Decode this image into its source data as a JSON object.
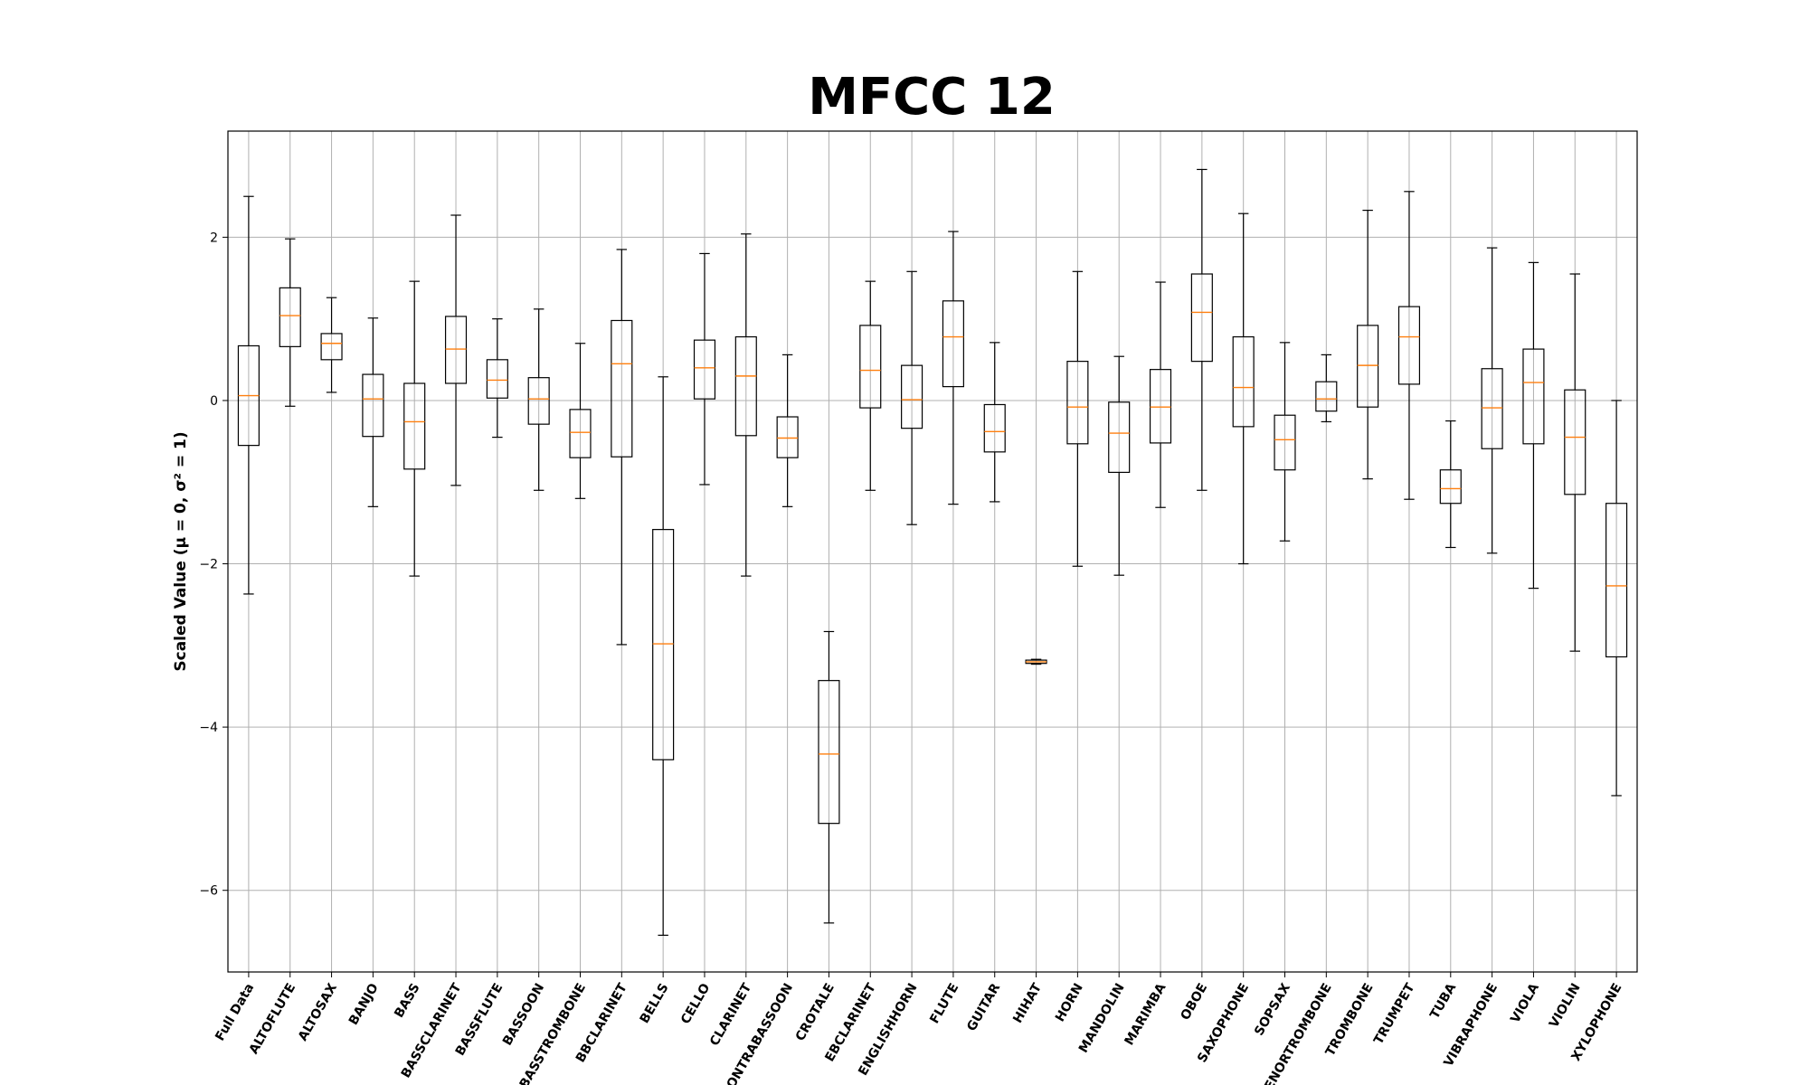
{
  "chart_data": {
    "type": "boxplot",
    "title": "MFCC 12",
    "ylabel": "Scaled Value (μ = 0, σ² = 1)",
    "xlabel": "",
    "ylim": [
      -7.0,
      3.3
    ],
    "yticks": [
      -6,
      -4,
      -2,
      0,
      2
    ],
    "grid": true,
    "colors": {
      "box": "#000000",
      "median": "#ff7f0e",
      "grid": "#b0b0b0"
    },
    "categories": [
      "Full Data",
      "ALTOFLUTE",
      "ALTOSAX",
      "BANJO",
      "BASS",
      "BASSCLARINET",
      "BASSFLUTE",
      "BASSOON",
      "BASSTROMBONE",
      "BBCLARINET",
      "BELLS",
      "CELLO",
      "CLARINET",
      "CONTRABASSOON",
      "CROTALE",
      "EBCLARINET",
      "ENGLISHHORN",
      "FLUTE",
      "GUITAR",
      "HIHAT",
      "HORN",
      "MANDOLIN",
      "MARIMBA",
      "OBOE",
      "SAXOPHONE",
      "SOPSAX",
      "TENORTROMBONE",
      "TROMBONE",
      "TRUMPET",
      "TUBA",
      "VIBRAPHONE",
      "VIOLA",
      "VIOLIN",
      "XYLOPHONE"
    ],
    "boxes": [
      {
        "whislo": -2.37,
        "q1": -0.55,
        "med": 0.06,
        "q3": 0.67,
        "whishi": 2.5
      },
      {
        "whislo": -0.07,
        "q1": 0.66,
        "med": 1.04,
        "q3": 1.38,
        "whishi": 1.98
      },
      {
        "whislo": 0.1,
        "q1": 0.5,
        "med": 0.7,
        "q3": 0.82,
        "whishi": 1.26
      },
      {
        "whislo": -1.3,
        "q1": -0.44,
        "med": 0.02,
        "q3": 0.32,
        "whishi": 1.01
      },
      {
        "whislo": -2.15,
        "q1": -0.84,
        "med": -0.26,
        "q3": 0.21,
        "whishi": 1.46
      },
      {
        "whislo": -1.04,
        "q1": 0.21,
        "med": 0.63,
        "q3": 1.03,
        "whishi": 2.27
      },
      {
        "whislo": -0.45,
        "q1": 0.03,
        "med": 0.25,
        "q3": 0.5,
        "whishi": 1.0
      },
      {
        "whislo": -1.1,
        "q1": -0.29,
        "med": 0.02,
        "q3": 0.28,
        "whishi": 1.12
      },
      {
        "whislo": -1.2,
        "q1": -0.7,
        "med": -0.39,
        "q3": -0.11,
        "whishi": 0.7
      },
      {
        "whislo": -2.99,
        "q1": -0.69,
        "med": 0.45,
        "q3": 0.98,
        "whishi": 1.85
      },
      {
        "whislo": -6.55,
        "q1": -4.4,
        "med": -2.98,
        "q3": -1.58,
        "whishi": 0.29
      },
      {
        "whislo": -1.03,
        "q1": 0.02,
        "med": 0.4,
        "q3": 0.74,
        "whishi": 1.8
      },
      {
        "whislo": -2.15,
        "q1": -0.43,
        "med": 0.3,
        "q3": 0.78,
        "whishi": 2.04
      },
      {
        "whislo": -1.3,
        "q1": -0.7,
        "med": -0.46,
        "q3": -0.2,
        "whishi": 0.56
      },
      {
        "whislo": -6.4,
        "q1": -5.18,
        "med": -4.33,
        "q3": -3.43,
        "whishi": -2.83
      },
      {
        "whislo": -1.1,
        "q1": -0.09,
        "med": 0.37,
        "q3": 0.92,
        "whishi": 1.46
      },
      {
        "whislo": -1.52,
        "q1": -0.34,
        "med": 0.01,
        "q3": 0.43,
        "whishi": 1.58
      },
      {
        "whislo": -1.27,
        "q1": 0.17,
        "med": 0.78,
        "q3": 1.22,
        "whishi": 2.07
      },
      {
        "whislo": -1.24,
        "q1": -0.63,
        "med": -0.38,
        "q3": -0.05,
        "whishi": 0.71
      },
      {
        "whislo": -3.23,
        "q1": -3.22,
        "med": -3.2,
        "q3": -3.18,
        "whishi": -3.17
      },
      {
        "whislo": -2.03,
        "q1": -0.53,
        "med": -0.08,
        "q3": 0.48,
        "whishi": 1.58
      },
      {
        "whislo": -2.14,
        "q1": -0.88,
        "med": -0.4,
        "q3": -0.02,
        "whishi": 0.54
      },
      {
        "whislo": -1.31,
        "q1": -0.52,
        "med": -0.08,
        "q3": 0.38,
        "whishi": 1.45
      },
      {
        "whislo": -1.1,
        "q1": 0.48,
        "med": 1.08,
        "q3": 1.55,
        "whishi": 2.83
      },
      {
        "whislo": -2.0,
        "q1": -0.32,
        "med": 0.16,
        "q3": 0.78,
        "whishi": 2.29
      },
      {
        "whislo": -1.72,
        "q1": -0.85,
        "med": -0.48,
        "q3": -0.18,
        "whishi": 0.71
      },
      {
        "whislo": -0.26,
        "q1": -0.13,
        "med": 0.02,
        "q3": 0.23,
        "whishi": 0.56
      },
      {
        "whislo": -0.96,
        "q1": -0.08,
        "med": 0.43,
        "q3": 0.92,
        "whishi": 2.33
      },
      {
        "whislo": -1.21,
        "q1": 0.2,
        "med": 0.78,
        "q3": 1.15,
        "whishi": 2.56
      },
      {
        "whislo": -1.8,
        "q1": -1.26,
        "med": -1.08,
        "q3": -0.85,
        "whishi": -0.25
      },
      {
        "whislo": -1.87,
        "q1": -0.59,
        "med": -0.09,
        "q3": 0.39,
        "whishi": 1.87
      },
      {
        "whislo": -2.3,
        "q1": -0.53,
        "med": 0.22,
        "q3": 0.63,
        "whishi": 1.69
      },
      {
        "whislo": -3.07,
        "q1": -1.15,
        "med": -0.45,
        "q3": 0.13,
        "whishi": 1.55
      },
      {
        "whislo": -4.84,
        "q1": -3.14,
        "med": -2.27,
        "q3": -1.26,
        "whishi": 0.0
      }
    ]
  }
}
